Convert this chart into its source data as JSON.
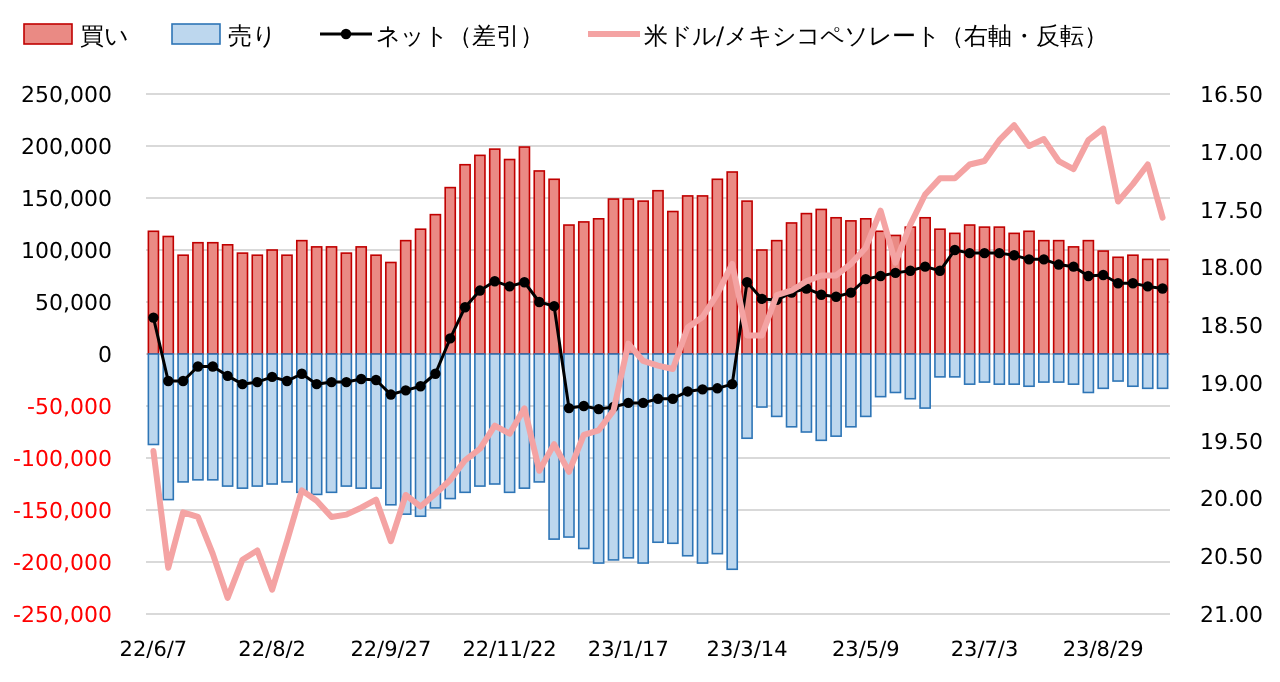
{
  "chart_data": {
    "type": "bar",
    "stacked": true,
    "grid": "y",
    "legend": "top",
    "categories": [
      "22/6/7",
      null,
      null,
      null,
      null,
      null,
      null,
      null,
      "22/8/2",
      null,
      null,
      null,
      null,
      null,
      null,
      null,
      "22/9/27",
      null,
      null,
      null,
      null,
      null,
      null,
      null,
      "22/11/22",
      null,
      null,
      null,
      null,
      null,
      null,
      null,
      "23/1/17",
      null,
      null,
      null,
      null,
      null,
      null,
      null,
      "23/3/14",
      null,
      null,
      null,
      null,
      null,
      null,
      null,
      "23/5/9",
      null,
      null,
      null,
      null,
      null,
      null,
      null,
      "23/7/3",
      null,
      null,
      null,
      null,
      null,
      null,
      null,
      "23/8/29",
      null,
      null,
      null,
      null
    ],
    "series": [
      {
        "name": "買い",
        "color": "#ea8a84",
        "values": [
          118000,
          113000,
          95000,
          107000,
          107000,
          105000,
          97000,
          95000,
          100000,
          95000,
          109000,
          103000,
          103000,
          97000,
          103000,
          95000,
          88000,
          109000,
          120000,
          134000,
          160000,
          182000,
          191000,
          197000,
          187000,
          199000,
          176000,
          168000,
          124000,
          127000,
          130000,
          149000,
          149000,
          147000,
          157000,
          137000,
          152000,
          152000,
          168000,
          175000,
          147000,
          100000,
          109000,
          126000,
          135000,
          139000,
          131000,
          128000,
          130000,
          118000,
          114000,
          122000,
          131000,
          120000,
          116000,
          124000,
          122000,
          122000,
          116000,
          118000,
          109000,
          109000,
          103000,
          109000,
          99000,
          93000,
          95000,
          91000,
          91000
        ]
      },
      {
        "name": "売り",
        "color": "#bdd7ee",
        "values": [
          -87000,
          -140000,
          -123000,
          -121000,
          -121000,
          -127000,
          -129000,
          -127000,
          -125000,
          -123000,
          -133000,
          -135000,
          -133000,
          -127000,
          -129000,
          -129000,
          -145000,
          -154000,
          -156000,
          -148000,
          -139000,
          -133000,
          -127000,
          -125000,
          -133000,
          -129000,
          -123000,
          -178000,
          -176000,
          -187000,
          -201000,
          -198000,
          -196000,
          -201000,
          -181000,
          -182000,
          -194000,
          -201000,
          -192000,
          -207000,
          -81000,
          -51000,
          -60000,
          -70000,
          -75000,
          -83000,
          -79000,
          -70000,
          -60000,
          -41000,
          -37000,
          -43000,
          -52000,
          -22000,
          -22000,
          -29000,
          -27000,
          -29000,
          -29000,
          -31000,
          -27000,
          -27000,
          -29000,
          -37000,
          -33000,
          -26000,
          -31000,
          -33000,
          -33000
        ]
      },
      {
        "name": "ネット（差引）",
        "type": "line",
        "marker": "circle",
        "color": "#000000",
        "values": [
          35000,
          -26000,
          -26000,
          -12000,
          -12000,
          -21000,
          -29000,
          -27000,
          -22000,
          -26000,
          -19000,
          -29000,
          -27000,
          -27000,
          -24000,
          -25000,
          -39000,
          -35000,
          -31000,
          -19000,
          15000,
          45000,
          61000,
          70000,
          65000,
          69000,
          50000,
          46000,
          -52000,
          -50000,
          -53000,
          -51000,
          -47000,
          -47000,
          -43000,
          -43000,
          -36000,
          -34000,
          -33000,
          -29000,
          69000,
          53000,
          52000,
          59000,
          63000,
          57000,
          55000,
          59000,
          72000,
          75000,
          78000,
          80000,
          84000,
          80000,
          100000,
          97000,
          97000,
          97000,
          95000,
          91000,
          91000,
          86000,
          84000,
          75000,
          76000,
          68000,
          68000,
          65000,
          63000
        ]
      },
      {
        "name": "米ドル/メキシコペソレート（右軸・反転）",
        "type": "line",
        "axis": "y2",
        "marker": "none",
        "color": "#f4a3a3",
        "values": [
          19.59,
          20.6,
          20.12,
          20.16,
          20.48,
          20.86,
          20.53,
          20.45,
          20.79,
          20.37,
          19.93,
          20.02,
          20.16,
          20.14,
          20.08,
          20.01,
          20.37,
          19.97,
          20.07,
          19.96,
          19.84,
          19.67,
          19.57,
          19.37,
          19.44,
          19.22,
          19.76,
          19.53,
          19.77,
          19.45,
          19.41,
          19.24,
          18.66,
          18.81,
          18.85,
          18.88,
          18.52,
          18.43,
          18.23,
          17.97,
          18.59,
          18.59,
          18.24,
          18.2,
          18.12,
          18.07,
          18.07,
          17.97,
          17.83,
          17.51,
          17.96,
          17.63,
          17.37,
          17.23,
          17.23,
          17.11,
          17.08,
          16.9,
          16.77,
          16.95,
          16.89,
          17.08,
          17.15,
          16.9,
          16.8,
          17.43,
          17.28,
          17.11,
          17.57
        ]
      }
    ],
    "ylim": [
      -250000,
      250000
    ],
    "yticks": [
      {
        "value": 250000,
        "label": "250,000"
      },
      {
        "value": 200000,
        "label": "200,000"
      },
      {
        "value": 150000,
        "label": "150,000"
      },
      {
        "value": 100000,
        "label": "100,000"
      },
      {
        "value": 50000,
        "label": "50,000"
      },
      0,
      {
        "value": -50000,
        "label": "-50,000"
      },
      {
        "value": -100000,
        "label": "-100,000"
      },
      {
        "value": -150000,
        "label": "-150,000"
      },
      {
        "value": -200000,
        "label": "-200,000"
      },
      {
        "value": -250000,
        "label": "-250,000"
      }
    ],
    "y2lim": [
      21,
      16.5
    ],
    "y2ticks": [
      {
        "value": 16.5,
        "label": "16.50"
      },
      {
        "value": 17,
        "label": "17.00"
      },
      {
        "value": 17.5,
        "label": "17.50"
      },
      {
        "value": 18,
        "label": "18.00"
      },
      {
        "value": 18.5,
        "label": "18.50"
      },
      {
        "value": 19,
        "label": "19.00"
      },
      {
        "value": 19.5,
        "label": "19.50"
      },
      {
        "value": 20,
        "label": "20.00"
      },
      {
        "value": 20.5,
        "label": "20.50"
      },
      {
        "value": 21,
        "label": "21.00"
      }
    ]
  }
}
